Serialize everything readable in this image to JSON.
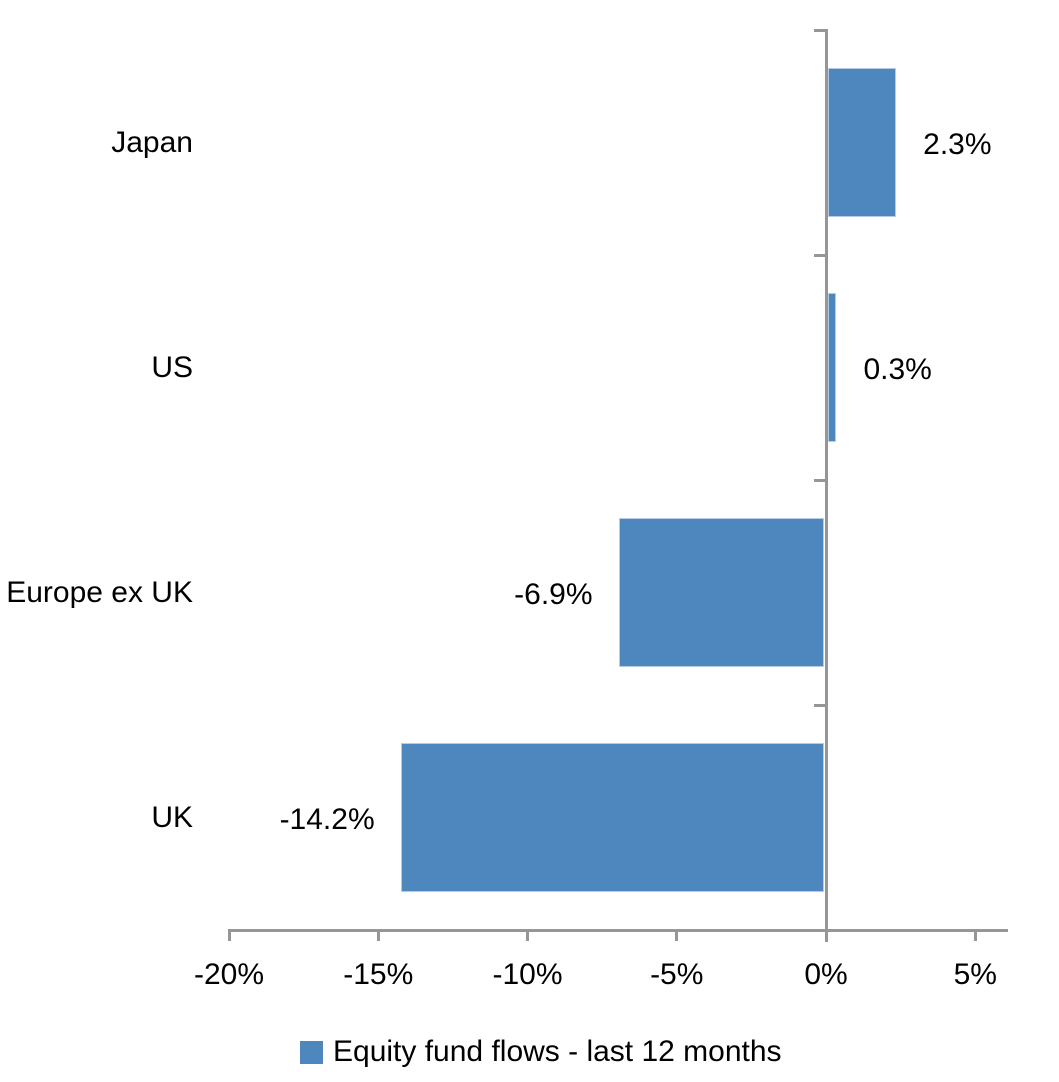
{
  "chart_data": {
    "type": "bar",
    "orientation": "horizontal",
    "title": "",
    "categories": [
      "Japan",
      "US",
      "Europe ex UK",
      "UK"
    ],
    "values": [
      2.3,
      0.3,
      -6.9,
      -14.2
    ],
    "data_labels": [
      "2.3%",
      "0.3%",
      "-6.9%",
      "-14.2%"
    ],
    "series_name": "Equity fund flows - last 12 months",
    "x_tick_values": [
      -20,
      -15,
      -10,
      -5,
      0,
      5
    ],
    "x_tick_labels": [
      "-20%",
      "-15%",
      "-10%",
      "-5%",
      "0%",
      "5%"
    ],
    "xlim": [
      -20,
      6.1
    ],
    "grid": false,
    "legend_position": "bottom",
    "bar_color": "#4E86BE",
    "bar_edge_color": "#B7CCE4",
    "axis_color": "#969696",
    "text_color": "#000000"
  }
}
